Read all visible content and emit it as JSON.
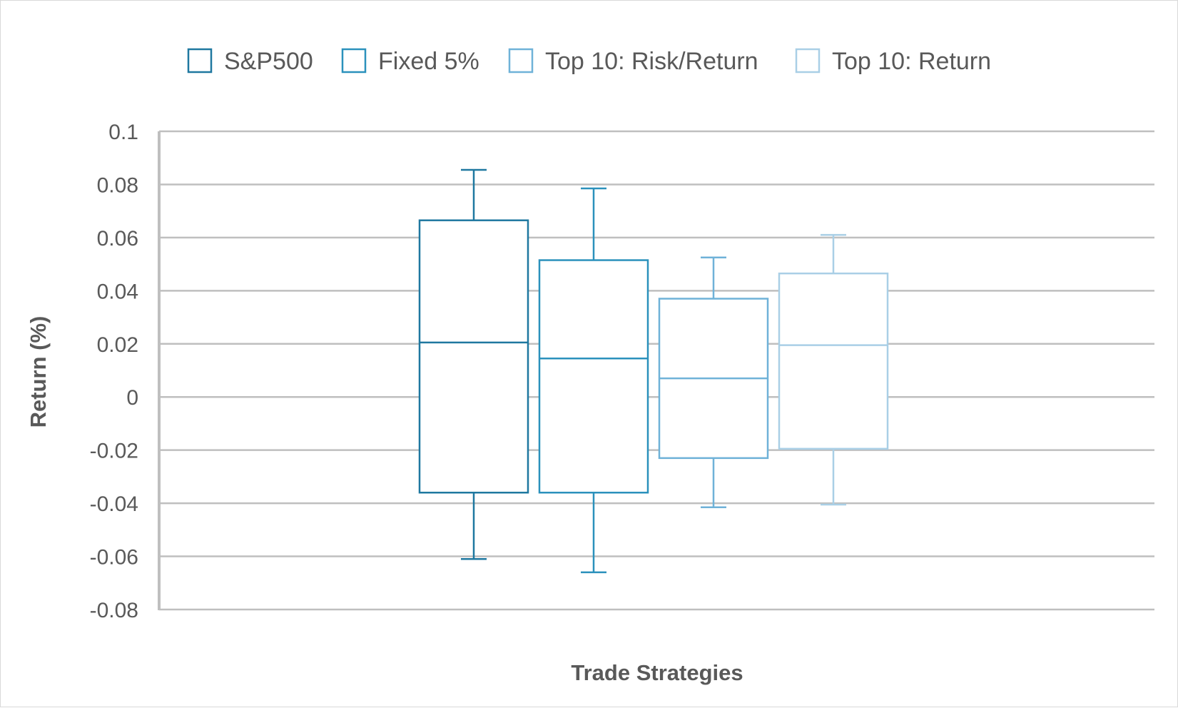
{
  "chart_data": {
    "type": "box",
    "xlabel": "Trade Strategies",
    "ylabel": "Return (%)",
    "ylim": [
      -0.08,
      0.1
    ],
    "yticks": [
      0.1,
      0.08,
      0.06,
      0.04,
      0.02,
      0,
      -0.02,
      -0.04,
      -0.06,
      -0.08
    ],
    "grid": true,
    "legend_position": "top",
    "series": [
      {
        "name": "S&P500",
        "color": "#1f78a0",
        "min": -0.061,
        "q1": -0.036,
        "median": 0.0205,
        "q3": 0.0665,
        "max": 0.0855
      },
      {
        "name": "Fixed 5%",
        "color": "#2b91bc",
        "min": -0.066,
        "q1": -0.036,
        "median": 0.0145,
        "q3": 0.0515,
        "max": 0.0785
      },
      {
        "name": "Top 10: Risk/Return",
        "color": "#6fb2d8",
        "min": -0.0415,
        "q1": -0.023,
        "median": 0.007,
        "q3": 0.037,
        "max": 0.0525
      },
      {
        "name": "Top 10: Return",
        "color": "#a9cfe6",
        "min": -0.0405,
        "q1": -0.0195,
        "median": 0.0195,
        "q3": 0.0465,
        "max": 0.061
      }
    ]
  }
}
